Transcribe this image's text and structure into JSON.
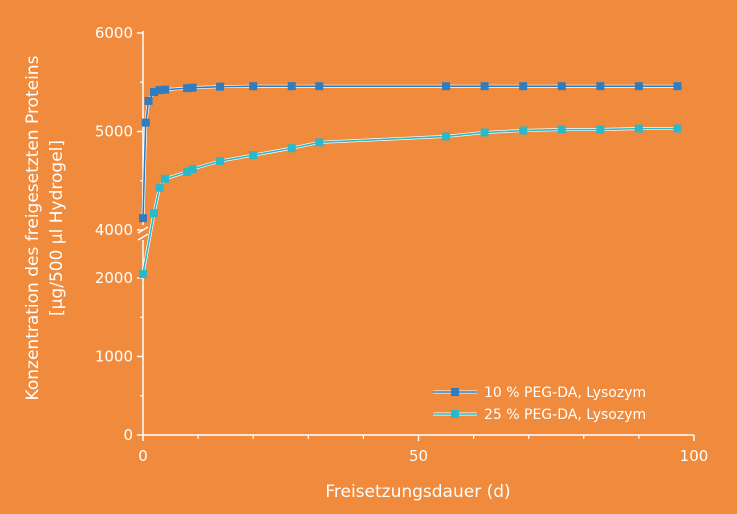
{
  "chart_data": {
    "type": "line",
    "xlabel": "Freisetzungsdauer (d)",
    "ylabel_line1": "Konzentration des freigesetzten Proteins",
    "ylabel_line2": "[µg/500 µl Hydrogel]",
    "xlim": [
      0,
      100
    ],
    "x_ticks": [
      0,
      50,
      100
    ],
    "x_tick_labels": [
      "0",
      "50",
      "100"
    ],
    "y_axis_break": true,
    "y_lower_range": [
      0,
      2400
    ],
    "y_upper_range": [
      4000,
      6000
    ],
    "y_ticks_lower": [
      0,
      1000,
      2000
    ],
    "y_tick_labels_lower": [
      "0",
      "1000",
      "2000"
    ],
    "y_ticks_upper": [
      4000,
      5000,
      6000
    ],
    "y_tick_labels_upper": [
      "4000",
      "5000",
      "6000"
    ],
    "grid": false,
    "legend_position": "bottom-right",
    "series": [
      {
        "name": "10 % PEG-DA, Lysozym",
        "color": "#2F7DC0",
        "x": [
          0,
          0.5,
          1,
          2,
          3,
          4,
          8,
          9,
          14,
          20,
          27,
          32,
          55,
          62,
          69,
          76,
          83,
          90,
          97
        ],
        "y": [
          4120,
          5090,
          5310,
          5400,
          5420,
          5425,
          5440,
          5445,
          5455,
          5460,
          5460,
          5460,
          5460,
          5460,
          5460,
          5460,
          5460,
          5460,
          5460
        ]
      },
      {
        "name": "25 % PEG-DA, Lysozym",
        "color": "#2BB8C8",
        "x": [
          0,
          2,
          3,
          4,
          8,
          9,
          14,
          20,
          27,
          32,
          55,
          62,
          69,
          76,
          83,
          90,
          97
        ],
        "y": [
          2050,
          4170,
          4430,
          4520,
          4590,
          4620,
          4700,
          4760,
          4830,
          4890,
          4950,
          4990,
          5010,
          5020,
          5020,
          5030,
          5030
        ]
      }
    ]
  }
}
